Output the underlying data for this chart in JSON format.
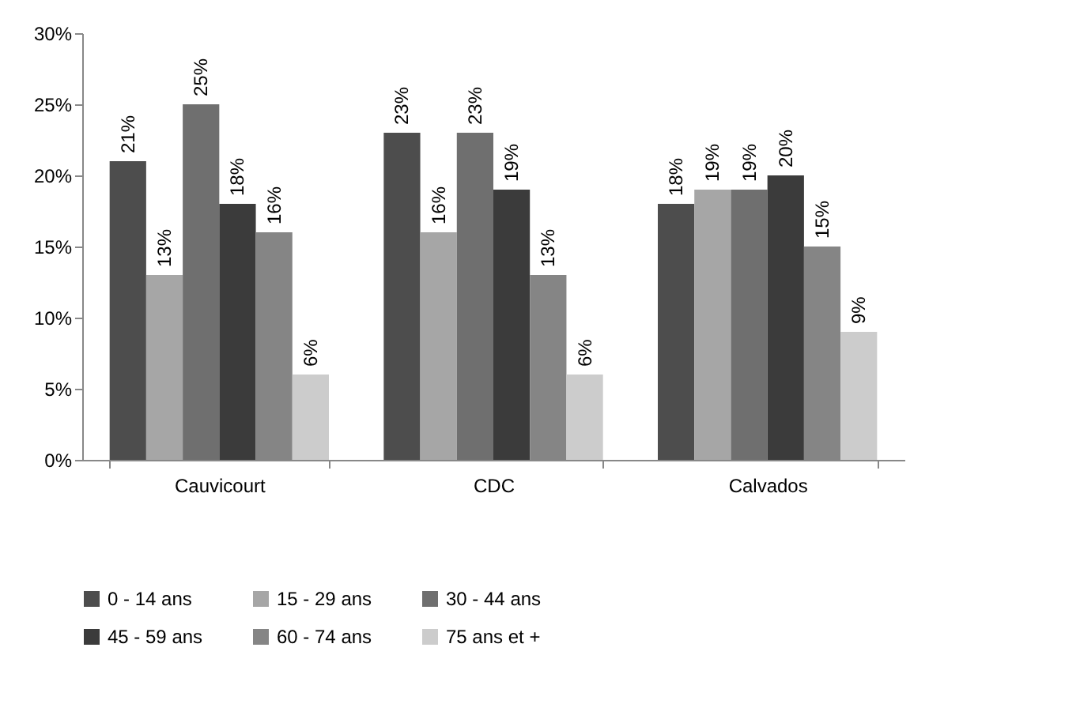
{
  "chart_data": {
    "type": "bar",
    "categories": [
      "Cauvicourt",
      "CDC",
      "Calvados"
    ],
    "series": [
      {
        "name": "0 - 14 ans",
        "color": "#4d4d4d",
        "values": [
          21,
          23,
          18
        ],
        "value_labels": [
          "21%",
          "23%",
          "18%"
        ]
      },
      {
        "name": "15 - 29 ans",
        "color": "#a6a6a6",
        "values": [
          13,
          16,
          19
        ],
        "value_labels": [
          "13%",
          "16%",
          "19%"
        ]
      },
      {
        "name": "30 - 44 ans",
        "color": "#6f6f6f",
        "values": [
          25,
          23,
          19
        ],
        "value_labels": [
          "25%",
          "23%",
          "19%"
        ]
      },
      {
        "name": "45 - 59 ans",
        "color": "#3b3b3b",
        "values": [
          18,
          19,
          20
        ],
        "value_labels": [
          "18%",
          "19%",
          "20%"
        ]
      },
      {
        "name": "60 - 74 ans",
        "color": "#858585",
        "values": [
          16,
          13,
          15
        ],
        "value_labels": [
          "16%",
          "13%",
          "15%"
        ]
      },
      {
        "name": "75 ans et +",
        "color": "#cccccc",
        "values": [
          6,
          6,
          9
        ],
        "value_labels": [
          "6%",
          "6%",
          "9%"
        ]
      }
    ],
    "ylim": [
      0,
      30
    ],
    "yticks": [
      {
        "value": 0,
        "label": "0%"
      },
      {
        "value": 5,
        "label": "5%"
      },
      {
        "value": 10,
        "label": "10%"
      },
      {
        "value": 15,
        "label": "15%"
      },
      {
        "value": 20,
        "label": "20%"
      },
      {
        "value": 25,
        "label": "25%"
      },
      {
        "value": 30,
        "label": "30%"
      }
    ],
    "grid": false,
    "legend": "bottom"
  }
}
